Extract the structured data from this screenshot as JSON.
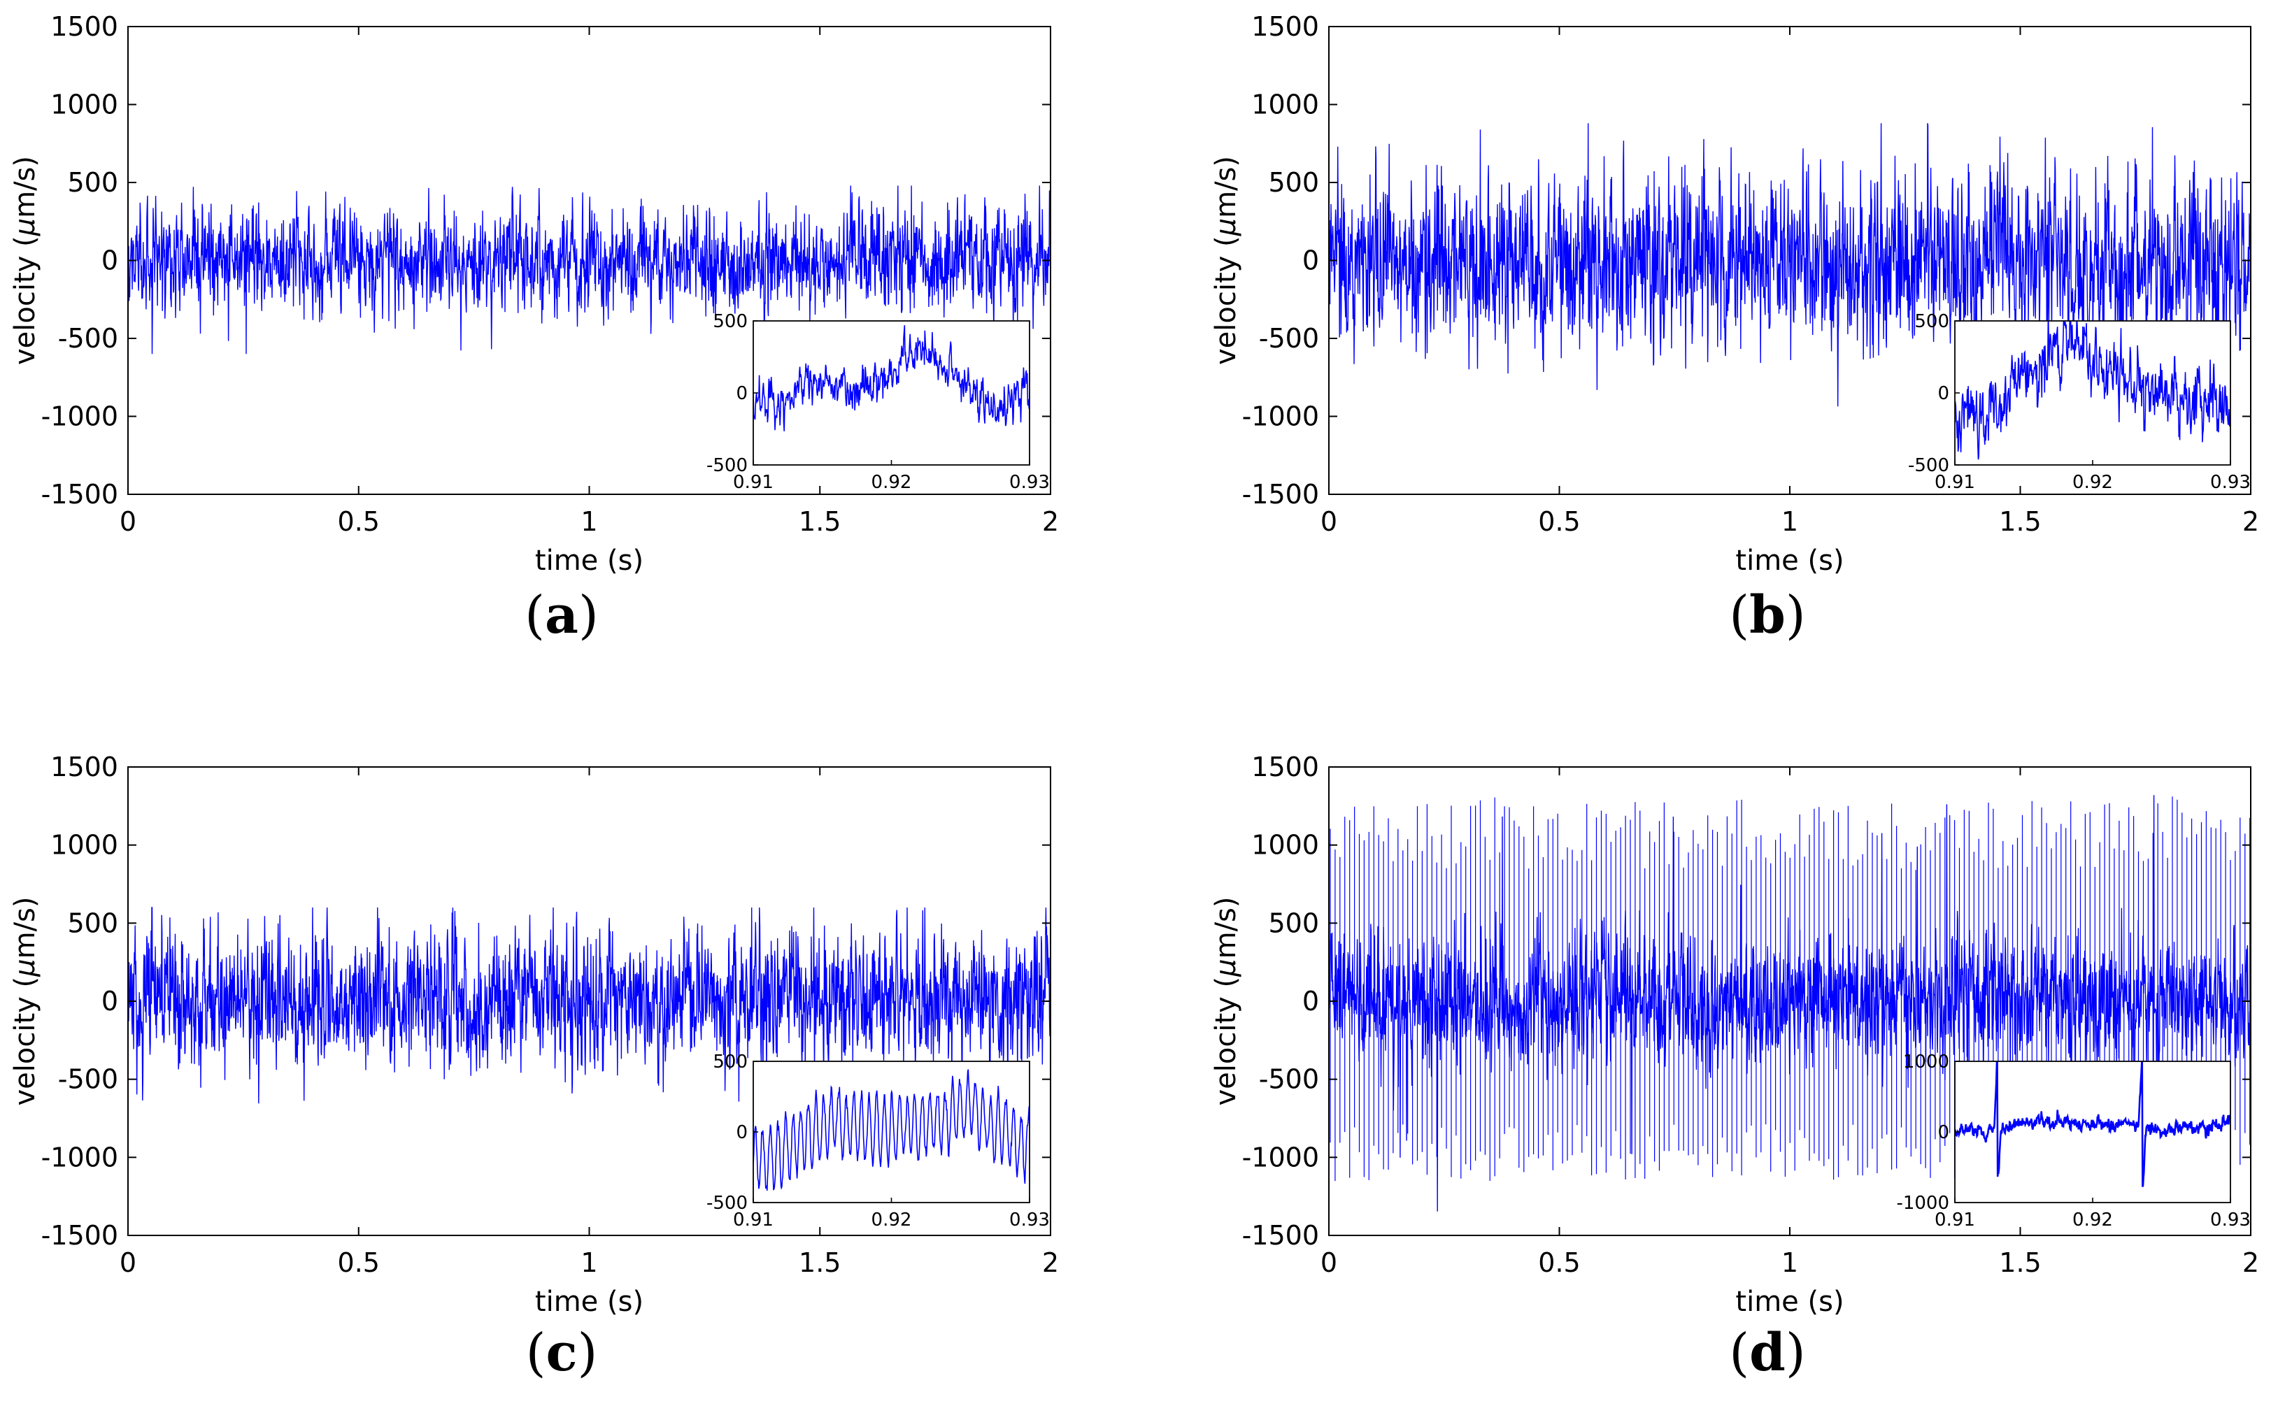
{
  "figure": {
    "panels": [
      {
        "label_open": "(",
        "label_letter": "a",
        "label_close": ")"
      },
      {
        "label_open": "(",
        "label_letter": "b",
        "label_close": ")"
      },
      {
        "label_open": "(",
        "label_letter": "c",
        "label_close": ")"
      },
      {
        "label_open": "(",
        "label_letter": "d",
        "label_close": ")"
      }
    ]
  },
  "chart_data": [
    {
      "type": "line",
      "panel": "a",
      "xlabel": "time (s)",
      "ylabel_prefix": "velocity (",
      "ylabel_mu": "μ",
      "ylabel_suffix": "m/s)",
      "xlim": [
        0,
        2
      ],
      "ylim": [
        -1500,
        1500
      ],
      "xticks": [
        0,
        0.5,
        1,
        1.5,
        2
      ],
      "xtick_labels": [
        "0",
        "0.5",
        "1",
        "1.5",
        "2"
      ],
      "yticks": [
        -1500,
        -1000,
        -500,
        0,
        500,
        1000,
        1500
      ],
      "ytick_labels": [
        "-1500",
        "-1000",
        "-500",
        "0",
        "500",
        "1000",
        "1500"
      ],
      "grid": false,
      "line_color": "#0000ff",
      "signal": {
        "duration_s": 2,
        "amplitude_um_s": 150,
        "peak_um_s": 480,
        "spike_amplitude_um_s": 0
      },
      "inset": {
        "xlim": [
          0.91,
          0.93
        ],
        "ylim": [
          -500,
          500
        ],
        "xticks": [
          0.91,
          0.92,
          0.93
        ],
        "xtick_labels": [
          "0.91",
          "0.92",
          "0.93"
        ],
        "yticks": [
          -500,
          0,
          500
        ],
        "ytick_labels": [
          "-500",
          "0",
          "500"
        ],
        "anchors": [
          [
            0.91,
            -30
          ],
          [
            0.912,
            -80
          ],
          [
            0.914,
            80
          ],
          [
            0.916,
            50
          ],
          [
            0.918,
            30
          ],
          [
            0.92,
            150
          ],
          [
            0.9225,
            280
          ],
          [
            0.924,
            200
          ],
          [
            0.926,
            30
          ],
          [
            0.928,
            -120
          ],
          [
            0.93,
            80
          ]
        ],
        "noise": 90
      }
    },
    {
      "type": "line",
      "panel": "b",
      "xlabel": "time (s)",
      "ylabel_prefix": "velocity (",
      "ylabel_mu": "μ",
      "ylabel_suffix": "m/s)",
      "xlim": [
        0,
        2
      ],
      "ylim": [
        -1500,
        1500
      ],
      "xticks": [
        0,
        0.5,
        1,
        1.5,
        2
      ],
      "xtick_labels": [
        "0",
        "0.5",
        "1",
        "1.5",
        "2"
      ],
      "yticks": [
        -1500,
        -1000,
        -500,
        0,
        500,
        1000,
        1500
      ],
      "ytick_labels": [
        "-1500",
        "-1000",
        "-500",
        "0",
        "500",
        "1000",
        "1500"
      ],
      "grid": false,
      "line_color": "#0000ff",
      "signal": {
        "duration_s": 2,
        "amplitude_um_s": 260,
        "peak_um_s": 880,
        "spike_amplitude_um_s": 0
      },
      "inset": {
        "xlim": [
          0.91,
          0.93
        ],
        "ylim": [
          -500,
          500
        ],
        "xticks": [
          0.91,
          0.92,
          0.93
        ],
        "xtick_labels": [
          "0.91",
          "0.92",
          "0.93"
        ],
        "yticks": [
          -500,
          0,
          500
        ],
        "ytick_labels": [
          "-500",
          "0",
          "500"
        ],
        "anchors": [
          [
            0.91,
            -150
          ],
          [
            0.913,
            -100
          ],
          [
            0.915,
            100
          ],
          [
            0.917,
            250
          ],
          [
            0.9185,
            450
          ],
          [
            0.92,
            300
          ],
          [
            0.922,
            100
          ],
          [
            0.924,
            0
          ],
          [
            0.926,
            -50
          ],
          [
            0.928,
            -100
          ],
          [
            0.93,
            -120
          ]
        ],
        "noise": 150
      }
    },
    {
      "type": "line",
      "panel": "c",
      "xlabel": "time (s)",
      "ylabel_prefix": "velocity (",
      "ylabel_mu": "μ",
      "ylabel_suffix": "m/s)",
      "xlim": [
        0,
        2
      ],
      "ylim": [
        -1500,
        1500
      ],
      "xticks": [
        0,
        0.5,
        1,
        1.5,
        2
      ],
      "xtick_labels": [
        "0",
        "0.5",
        "1",
        "1.5",
        "2"
      ],
      "yticks": [
        -1500,
        -1000,
        -500,
        0,
        500,
        1000,
        1500
      ],
      "ytick_labels": [
        "-1500",
        "-1000",
        "-500",
        "0",
        "500",
        "1000",
        "1500"
      ],
      "grid": false,
      "line_color": "#0000ff",
      "signal": {
        "duration_s": 2,
        "amplitude_um_s": 200,
        "peak_um_s": 600,
        "spike_amplitude_um_s": 0
      },
      "inset": {
        "xlim": [
          0.91,
          0.93
        ],
        "ylim": [
          -500,
          500
        ],
        "xticks": [
          0.91,
          0.92,
          0.93
        ],
        "xtick_labels": [
          "0.91",
          "0.92",
          "0.93"
        ],
        "yticks": [
          -500,
          0,
          500
        ],
        "ytick_labels": [
          "-500",
          "0",
          "500"
        ],
        "anchors": [
          [
            0.91,
            -200
          ],
          [
            0.912,
            -150
          ],
          [
            0.914,
            0
          ],
          [
            0.916,
            80
          ],
          [
            0.918,
            30
          ],
          [
            0.92,
            0
          ],
          [
            0.922,
            50
          ],
          [
            0.924,
            100
          ],
          [
            0.9255,
            200
          ],
          [
            0.927,
            50
          ],
          [
            0.93,
            -100
          ]
        ],
        "oscillation": {
          "amplitude": 220,
          "period_s": 0.00055
        },
        "noise": 40
      }
    },
    {
      "type": "line",
      "panel": "d",
      "xlabel": "time (s)",
      "ylabel_prefix": "velocity (",
      "ylabel_mu": "μ",
      "ylabel_suffix": "m/s)",
      "xlim": [
        0,
        2
      ],
      "ylim": [
        -1500,
        1500
      ],
      "xticks": [
        0,
        0.5,
        1,
        1.5,
        2
      ],
      "xtick_labels": [
        "0",
        "0.5",
        "1",
        "1.5",
        "2"
      ],
      "yticks": [
        -1500,
        -1000,
        -500,
        0,
        500,
        1000,
        1500
      ],
      "ytick_labels": [
        "-1500",
        "-1000",
        "-500",
        "0",
        "500",
        "1000",
        "1500"
      ],
      "grid": false,
      "line_color": "#0000ff",
      "signal": {
        "duration_s": 2,
        "amplitude_um_s": 190,
        "peak_um_s": 1320,
        "spike_amplitude_um_s": 1050,
        "spike_period_s": 0.0105
      },
      "inset": {
        "xlim": [
          0.91,
          0.93
        ],
        "ylim": [
          -1000,
          1000
        ],
        "xticks": [
          0.91,
          0.92,
          0.93
        ],
        "xtick_labels": [
          "0.91",
          "0.92",
          "0.93"
        ],
        "yticks": [
          -1000,
          0,
          1000
        ],
        "ytick_labels": [
          "-1000",
          "0",
          "1000"
        ],
        "anchors": [
          [
            0.91,
            0
          ],
          [
            0.913,
            30
          ],
          [
            0.916,
            150
          ],
          [
            0.919,
            100
          ],
          [
            0.922,
            100
          ],
          [
            0.925,
            50
          ],
          [
            0.928,
            50
          ],
          [
            0.93,
            150
          ]
        ],
        "spikes": [
          {
            "t": 0.9131,
            "up": 950,
            "down": -800
          },
          {
            "t": 0.9236,
            "up": 1000,
            "down": -900
          }
        ],
        "noise": 60
      }
    }
  ]
}
